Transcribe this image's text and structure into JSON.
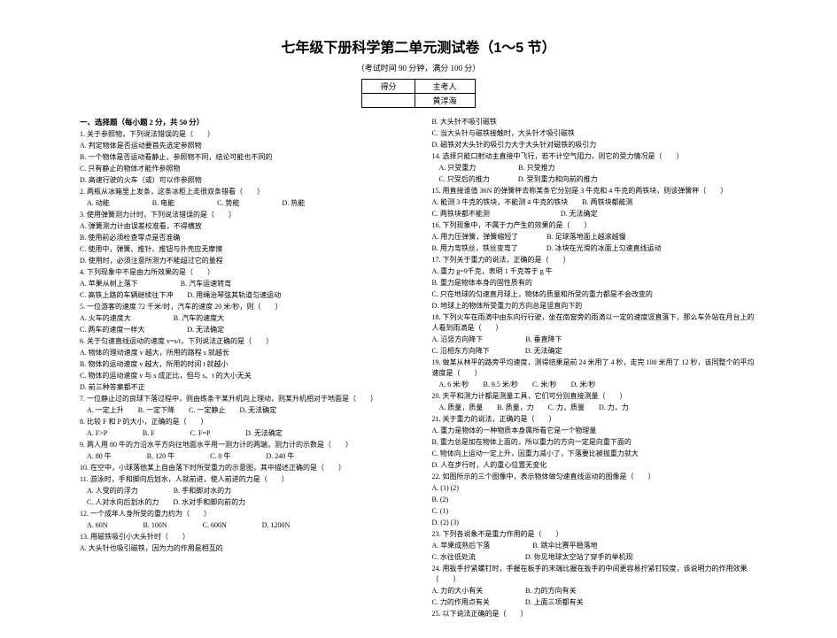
{
  "title": "七年级下册科学第二单元测试卷（1～5 节）",
  "subtitle": "（考试时间 90 分钟，满分 100 分）",
  "table": {
    "r1c1": "得分",
    "r1c2": "主考人",
    "r2c1": "",
    "r2c2": "黄淳海"
  },
  "sec1": "一、选择题（每小题 2 分，共 50 分）",
  "left": [
    "1. 关于参照物，下列说法错误的是（　　）",
    "A. 判定物体是否运动要首先选定参照物",
    "B. 一个物体是否运动看静止，参照物不同，结论可能也不同的",
    "C. 只有静止的物体才能作参照物",
    "D. 高速行驶的火车（或）可以作参照物",
    "2. 两瓶从冰箱里上发条，这条冰柜上走很双条错看（　　）",
    "　A. 动能　　　　　　B. 电能　　　　　　C. 势能　　　　　　D. 热能",
    "3. 使用弹簧测力计时，下列说法错误的是（　　）",
    "A. 弹簧测力计由误差校准看，不得横放",
    "B. 使用前必须检查零点是否准确",
    "C. 使用中，弹簧、推针、推钮与外壳应无摩擦",
    "D. 使用时，必须注意所测力不能超过它的量程",
    "4. 下列现象中不是由力所效果的是（　　）",
    "A. 苹果从树上落下　　　　　　B. 汽车运速转弯",
    "C. 高铁上路的车辆继续往下冲　　D. 用绳治琴弦其轨道匀速运动",
    "5. 一位游客的速度 72 千米/时，汽车的速度 20 米/秒，则（　　）",
    "A. 火车的速度大　　　　　　B. 汽车的速度大",
    "C. 两车的速度一样大　　　　　　D. 无法确定",
    "6. 关于匀速直线运动的速度 v=s/t，下列说法正确的是（　　）",
    "A. 物体的理动速度 v 越大，所用的路程 s 就越长",
    "B. 物体的运动速度 v 越大，所用的时间 t 就越小",
    "C. 物体的运动速度 v 与 s 成正比，但与 s、t 的大小无关",
    "D. 前三种答案都不正",
    "7. 一位静止过的良球下落过程中，则由练条干某升机向上理动，则某升机相对于地面是（　　）",
    "　A. 一定上升　　B. 一定下降　　C. 一定静止　　D. 无法确定",
    "8. 比较 F 和 P 的大小，正确的是（　　）",
    "　A. F>P　　　　　B. F　　　　　C. F=P　　　　　D. 无法确定",
    "9. 两人用 80 牛的力沿水平方向往地面水平用一测力计的两端，测力计的示数是（　　）",
    "　A. 80 牛　　　　　B. 120 牛　　　　　C. 0 牛　　　　　D. 240 牛",
    "10. 在空中，小球落他某上自由落下时所受重力的示意图，其中描述正确的是（　　）",
    "",
    "11. 游泳时，手和脚向后划水，人就前进，使人前进的力是（　　）",
    "　A. 人受的的浮力　　　　　B. 手和脚对水的力",
    "　C. 人对水向后划水的力　　D. 水对手和脚向前的力",
    "12. 一个成年人身所受的重力约为（　　）",
    "　A. 60N　　　　　B. 100N　　　　　C. 600N　　　　　D. 1200N",
    "13. 用磁铁吸引小大头针时（　　）",
    "A. 大头针也吸引磁铁，因为力的作用是相互的"
  ],
  "right": [
    "B. 大头针不吸引磁铁",
    "C. 当大头针与磁铁接触时，大头针才吸引磁铁",
    "D. 磁铁对大头针的吸引力大于大头针对磁铁的吸引力",
    "14. 选择只能口射动主直接中飞行，若不计空气阻力，则它的受力情况是（　　）",
    "　A. 只受重力　　　　　　B. 只受推力",
    "　C. 只受后的推力　　　　D. 受到重力和向前的推力",
    "15. 用直接谁值 36N 的弹簧秤去称某条它分别是 3 牛克和 4 牛克的两铁块，则该弹簧秤（　　）",
    "A. 能测 3 牛克的铁块，不能测 4 牛克的铁块　　B. 两铁块都能测",
    "C. 两铁块都不能测　　　　　　　　　　D. 无法确定",
    "16. 下列现象中，不属于力产生的效果的是（　　）",
    "A. 用力压弹簧，弹簧缩短了　　　　B. 足球落地面上越滚越慢",
    "B. 用力弯铁丝，铁丝变弯了　　　　D. 冰块在光滑的冰面上匀速直线运动",
    "17. 下列关于重力的说法，正确的是（　　）",
    "A. 重力 g=9千克，表明 1 千克等于 g 牛",
    "B. 重力是物体本身的固性质有的",
    "C. 只在地球的匀速直月球上，物体的质量和所受的重力都是不会改变的",
    "D. 地球上的物体所受重力的方向总是竖直向下的",
    "18. 下列火车在雨滴中由东向行行驶，坐在南窗旁的雨滴以一定的速度竖直落下，那么车外站在月台上的人看到雨滴是（　　）",
    "A. 沿竖方向降下　　　　　　B. 垂直降下",
    "C. 沿相东方向降下　　　　　D. 无法确定",
    "19. 做某从林平的路旁平均速度，测得结果是前 24 米用了 4 秒，走完 100 米用了 12 秒，该同整个的平均速度是（　　）",
    "　A. 6 米/秒　　B. 9.5 米/秒　　C. 米/秒　　D. 米/秒",
    "20. 天平和测力计都是测量工具，它们可分别直接测量（　　）",
    "　A. 质量，质量　　B. 质量，力　　C. 力，质量　　D. 力，力",
    "21. 关于重力的说法，正确的是（　　）",
    "A. 重力是物体的一种物质本身属所看它是一个物理量",
    "B. 重力总是加在物体上面的，所以重力的方向一定是向重下面的",
    "C. 物体向上运动一定上升，因重力减小了，下落要比被抛重力就大",
    "D. 人在步行时，人的重心位置无变化",
    "22. 如图所示的三个图像中，表示物体做匀速直线运动的图像是（　　）",
    "",
    "A. (1) (2)",
    "B. (2)",
    "C. (1)",
    "D. (2) (3)",
    "23. 下列各说象不是重力作用的是（　　）",
    "A. 苹果成熟后下落　　　　　　B. 跳伞比赛平稳落地",
    "C. 水往低处流　　　　　　　D. 你见地球太空站了穿手的举机现",
    "24. 用扳手拧紧螺钉时，手握在板手的末端比握在扳手的中间更容易拧紧钉较度，该说明力的作用效果（　　）",
    "A. 力的大小有关　　　　　　B. 力的方向有关",
    "C. 力的作用点有关　　　　　D. 上面三项都有关",
    "25. 以下说法正确的是（　　）"
  ]
}
